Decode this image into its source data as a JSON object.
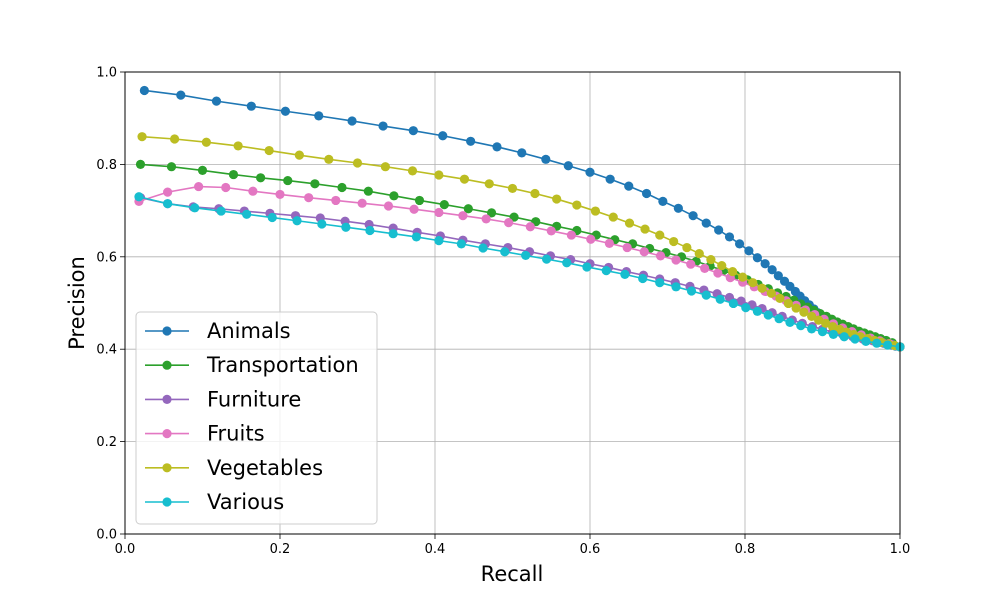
{
  "chart_data": {
    "type": "line",
    "title": "",
    "xlabel": "Recall",
    "ylabel": "Precision",
    "xlim": [
      0.0,
      1.0
    ],
    "ylim": [
      0.0,
      1.0
    ],
    "xticks": [
      "0.0",
      "0.2",
      "0.4",
      "0.6",
      "0.8",
      "1.0"
    ],
    "yticks": [
      "0.0",
      "0.2",
      "0.4",
      "0.6",
      "0.8",
      "1.0"
    ],
    "grid": true,
    "legend_position": "lower-left",
    "series": [
      {
        "name": "Animals",
        "color": "#1f77b4",
        "x": [
          0.025,
          0.072,
          0.118,
          0.163,
          0.207,
          0.25,
          0.293,
          0.333,
          0.372,
          0.41,
          0.446,
          0.48,
          0.512,
          0.543,
          0.572,
          0.6,
          0.626,
          0.65,
          0.673,
          0.694,
          0.714,
          0.733,
          0.75,
          0.766,
          0.78,
          0.793,
          0.805,
          0.816,
          0.826,
          0.835,
          0.843,
          0.851,
          0.858,
          0.865,
          0.871,
          0.877,
          0.883,
          0.889,
          0.894,
          0.899,
          0.904,
          0.909,
          0.914,
          0.919,
          0.924,
          0.929,
          0.934,
          0.939,
          0.944,
          0.949,
          0.954,
          0.959,
          0.964,
          0.969,
          0.974,
          0.979,
          0.984,
          0.989,
          0.994,
          1.0
        ],
        "y": [
          0.96,
          0.95,
          0.937,
          0.926,
          0.915,
          0.905,
          0.894,
          0.883,
          0.873,
          0.862,
          0.85,
          0.838,
          0.825,
          0.811,
          0.797,
          0.783,
          0.768,
          0.753,
          0.737,
          0.72,
          0.705,
          0.689,
          0.673,
          0.658,
          0.643,
          0.628,
          0.613,
          0.598,
          0.585,
          0.572,
          0.559,
          0.547,
          0.536,
          0.525,
          0.515,
          0.505,
          0.496,
          0.487,
          0.479,
          0.472,
          0.465,
          0.459,
          0.454,
          0.449,
          0.445,
          0.441,
          0.437,
          0.434,
          0.431,
          0.428,
          0.425,
          0.422,
          0.42,
          0.417,
          0.415,
          0.413,
          0.411,
          0.409,
          0.407,
          0.405
        ]
      },
      {
        "name": "Transportation",
        "color": "#2ca02c",
        "x": [
          0.02,
          0.06,
          0.1,
          0.14,
          0.175,
          0.21,
          0.245,
          0.28,
          0.314,
          0.347,
          0.38,
          0.412,
          0.443,
          0.473,
          0.502,
          0.53,
          0.557,
          0.583,
          0.608,
          0.632,
          0.655,
          0.677,
          0.698,
          0.718,
          0.737,
          0.755,
          0.772,
          0.788,
          0.803,
          0.817,
          0.83,
          0.842,
          0.853,
          0.863,
          0.872,
          0.881,
          0.889,
          0.897,
          0.905,
          0.912,
          0.919,
          0.926,
          0.933,
          0.94,
          0.947,
          0.954,
          0.961,
          0.968,
          0.975,
          0.982,
          0.99,
          1.0
        ],
        "y": [
          0.8,
          0.795,
          0.787,
          0.778,
          0.771,
          0.765,
          0.758,
          0.75,
          0.742,
          0.732,
          0.722,
          0.713,
          0.704,
          0.695,
          0.686,
          0.676,
          0.666,
          0.657,
          0.647,
          0.637,
          0.628,
          0.618,
          0.609,
          0.6,
          0.59,
          0.58,
          0.57,
          0.56,
          0.55,
          0.54,
          0.531,
          0.522,
          0.514,
          0.506,
          0.498,
          0.491,
          0.484,
          0.477,
          0.471,
          0.465,
          0.459,
          0.454,
          0.449,
          0.444,
          0.439,
          0.435,
          0.431,
          0.427,
          0.423,
          0.419,
          0.414,
          0.405
        ]
      },
      {
        "name": "Furniture",
        "color": "#9467bd",
        "x": [
          0.02,
          0.055,
          0.088,
          0.121,
          0.154,
          0.187,
          0.22,
          0.252,
          0.284,
          0.315,
          0.346,
          0.377,
          0.407,
          0.436,
          0.465,
          0.494,
          0.522,
          0.549,
          0.575,
          0.6,
          0.624,
          0.647,
          0.669,
          0.69,
          0.71,
          0.729,
          0.747,
          0.764,
          0.78,
          0.795,
          0.809,
          0.822,
          0.835,
          0.848,
          0.861,
          0.874,
          0.887,
          0.9,
          0.913,
          0.926,
          0.939,
          0.952,
          0.965,
          0.978,
          0.99,
          1.0
        ],
        "y": [
          0.728,
          0.715,
          0.708,
          0.704,
          0.699,
          0.694,
          0.689,
          0.684,
          0.677,
          0.67,
          0.662,
          0.653,
          0.645,
          0.636,
          0.628,
          0.62,
          0.611,
          0.602,
          0.594,
          0.585,
          0.577,
          0.568,
          0.56,
          0.552,
          0.544,
          0.536,
          0.528,
          0.52,
          0.512,
          0.504,
          0.496,
          0.488,
          0.479,
          0.471,
          0.463,
          0.456,
          0.449,
          0.443,
          0.437,
          0.432,
          0.427,
          0.422,
          0.418,
          0.414,
          0.41,
          0.405
        ]
      },
      {
        "name": "Fruits",
        "color": "#e377c2",
        "x": [
          0.018,
          0.055,
          0.095,
          0.13,
          0.165,
          0.2,
          0.237,
          0.272,
          0.306,
          0.34,
          0.373,
          0.405,
          0.436,
          0.466,
          0.495,
          0.523,
          0.55,
          0.576,
          0.601,
          0.625,
          0.648,
          0.67,
          0.691,
          0.711,
          0.73,
          0.748,
          0.765,
          0.781,
          0.797,
          0.812,
          0.826,
          0.84,
          0.853,
          0.866,
          0.878,
          0.89,
          0.902,
          0.914,
          0.926,
          0.938,
          0.95,
          0.962,
          0.974,
          0.986,
          1.0
        ],
        "y": [
          0.72,
          0.74,
          0.752,
          0.75,
          0.742,
          0.735,
          0.728,
          0.722,
          0.716,
          0.71,
          0.703,
          0.696,
          0.689,
          0.682,
          0.674,
          0.665,
          0.656,
          0.647,
          0.638,
          0.629,
          0.62,
          0.611,
          0.602,
          0.593,
          0.584,
          0.575,
          0.565,
          0.555,
          0.545,
          0.535,
          0.525,
          0.515,
          0.505,
          0.495,
          0.485,
          0.475,
          0.465,
          0.455,
          0.446,
          0.438,
          0.431,
          0.424,
          0.418,
          0.412,
          0.405
        ]
      },
      {
        "name": "Vegetables",
        "color": "#bcbd22",
        "x": [
          0.022,
          0.064,
          0.105,
          0.146,
          0.186,
          0.225,
          0.263,
          0.3,
          0.336,
          0.371,
          0.405,
          0.438,
          0.47,
          0.5,
          0.529,
          0.557,
          0.583,
          0.607,
          0.63,
          0.651,
          0.671,
          0.69,
          0.708,
          0.725,
          0.741,
          0.756,
          0.77,
          0.784,
          0.797,
          0.81,
          0.822,
          0.834,
          0.845,
          0.856,
          0.866,
          0.876,
          0.886,
          0.895,
          0.904,
          0.913,
          0.922,
          0.931,
          0.94,
          0.949,
          0.958,
          0.967,
          0.976,
          0.985,
          0.993,
          1.0
        ],
        "y": [
          0.86,
          0.855,
          0.848,
          0.84,
          0.83,
          0.82,
          0.811,
          0.803,
          0.795,
          0.786,
          0.777,
          0.768,
          0.758,
          0.748,
          0.737,
          0.725,
          0.712,
          0.699,
          0.686,
          0.673,
          0.66,
          0.647,
          0.633,
          0.62,
          0.607,
          0.594,
          0.581,
          0.568,
          0.556,
          0.544,
          0.532,
          0.521,
          0.51,
          0.499,
          0.489,
          0.48,
          0.471,
          0.463,
          0.456,
          0.449,
          0.443,
          0.437,
          0.432,
          0.427,
          0.423,
          0.419,
          0.415,
          0.411,
          0.408,
          0.405
        ]
      },
      {
        "name": "Various",
        "color": "#17becf",
        "x": [
          0.018,
          0.055,
          0.09,
          0.124,
          0.157,
          0.19,
          0.222,
          0.254,
          0.285,
          0.316,
          0.346,
          0.376,
          0.405,
          0.434,
          0.462,
          0.49,
          0.517,
          0.544,
          0.57,
          0.596,
          0.621,
          0.645,
          0.668,
          0.69,
          0.711,
          0.731,
          0.75,
          0.768,
          0.785,
          0.801,
          0.816,
          0.83,
          0.844,
          0.858,
          0.872,
          0.886,
          0.9,
          0.914,
          0.928,
          0.942,
          0.956,
          0.97,
          0.984,
          1.0
        ],
        "y": [
          0.73,
          0.715,
          0.706,
          0.699,
          0.692,
          0.685,
          0.678,
          0.671,
          0.664,
          0.657,
          0.65,
          0.643,
          0.635,
          0.628,
          0.619,
          0.611,
          0.603,
          0.595,
          0.587,
          0.578,
          0.57,
          0.562,
          0.553,
          0.544,
          0.535,
          0.526,
          0.517,
          0.508,
          0.499,
          0.49,
          0.482,
          0.474,
          0.466,
          0.458,
          0.451,
          0.444,
          0.438,
          0.432,
          0.427,
          0.422,
          0.417,
          0.413,
          0.409,
          0.405
        ]
      }
    ]
  }
}
